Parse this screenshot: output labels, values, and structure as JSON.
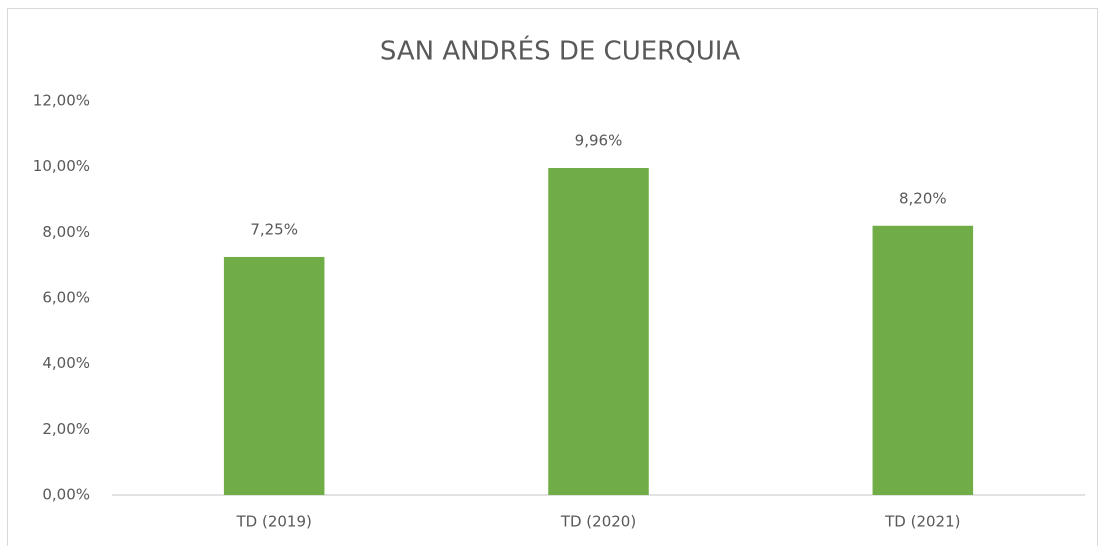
{
  "chart_data": {
    "type": "bar",
    "title": "SAN ANDRÉS DE CUERQUIA",
    "categories": [
      "TD (2019)",
      "TD (2020)",
      "TD (2021)"
    ],
    "values": [
      7.25,
      9.96,
      8.2
    ],
    "value_labels": [
      "7,25%",
      "9,96%",
      "8,20%"
    ],
    "color": "#70ad47",
    "ylim": [
      0,
      12
    ],
    "yticks": [
      {
        "value": 0,
        "label": "0,00%"
      },
      {
        "value": 2,
        "label": "2,00%"
      },
      {
        "value": 4,
        "label": "4,00%"
      },
      {
        "value": 6,
        "label": "6,00%"
      },
      {
        "value": 8,
        "label": "8,00%"
      },
      {
        "value": 10,
        "label": "10,00%"
      },
      {
        "value": 12,
        "label": "12,00%"
      }
    ],
    "grid": false
  }
}
